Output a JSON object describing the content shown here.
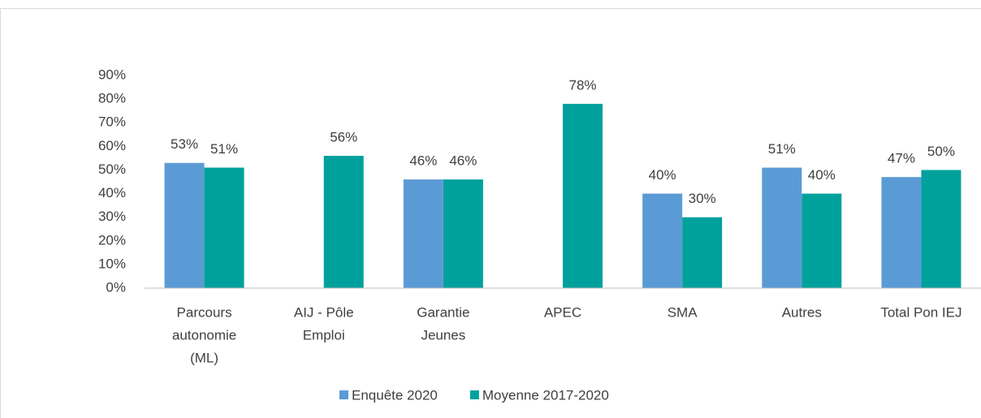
{
  "chart_data": {
    "type": "bar",
    "categories": [
      [
        "Parcours",
        "autonomie",
        "(ML)"
      ],
      [
        "AIJ - Pôle",
        "Emploi"
      ],
      [
        "Garantie",
        "Jeunes"
      ],
      [
        "APEC"
      ],
      [
        "SMA"
      ],
      [
        "Autres"
      ],
      [
        "Total Pon IEJ"
      ]
    ],
    "series": [
      {
        "name": "Enquête 2020",
        "color": "#5b9bd5",
        "values": [
          53,
          null,
          46,
          null,
          40,
          51,
          47
        ],
        "value_labels": [
          "53%",
          null,
          "46%",
          null,
          "40%",
          "51%",
          "47%"
        ]
      },
      {
        "name": "Moyenne 2017-2020",
        "color": "#00a19c",
        "values": [
          51,
          56,
          46,
          78,
          30,
          40,
          50
        ],
        "value_labels": [
          "51%",
          "56%",
          "46%",
          "78%",
          "30%",
          "40%",
          "50%"
        ]
      }
    ],
    "ylim": [
      0,
      90
    ],
    "yticks": [
      {
        "value": 0,
        "label": "0%"
      },
      {
        "value": 10,
        "label": "10%"
      },
      {
        "value": 20,
        "label": "20%"
      },
      {
        "value": 30,
        "label": "30%"
      },
      {
        "value": 40,
        "label": "40%"
      },
      {
        "value": 50,
        "label": "50%"
      },
      {
        "value": 60,
        "label": "60%"
      },
      {
        "value": 70,
        "label": "70%"
      },
      {
        "value": 80,
        "label": "80%"
      },
      {
        "value": 90,
        "label": "90%"
      }
    ],
    "grid": false,
    "legend": "bottom"
  }
}
